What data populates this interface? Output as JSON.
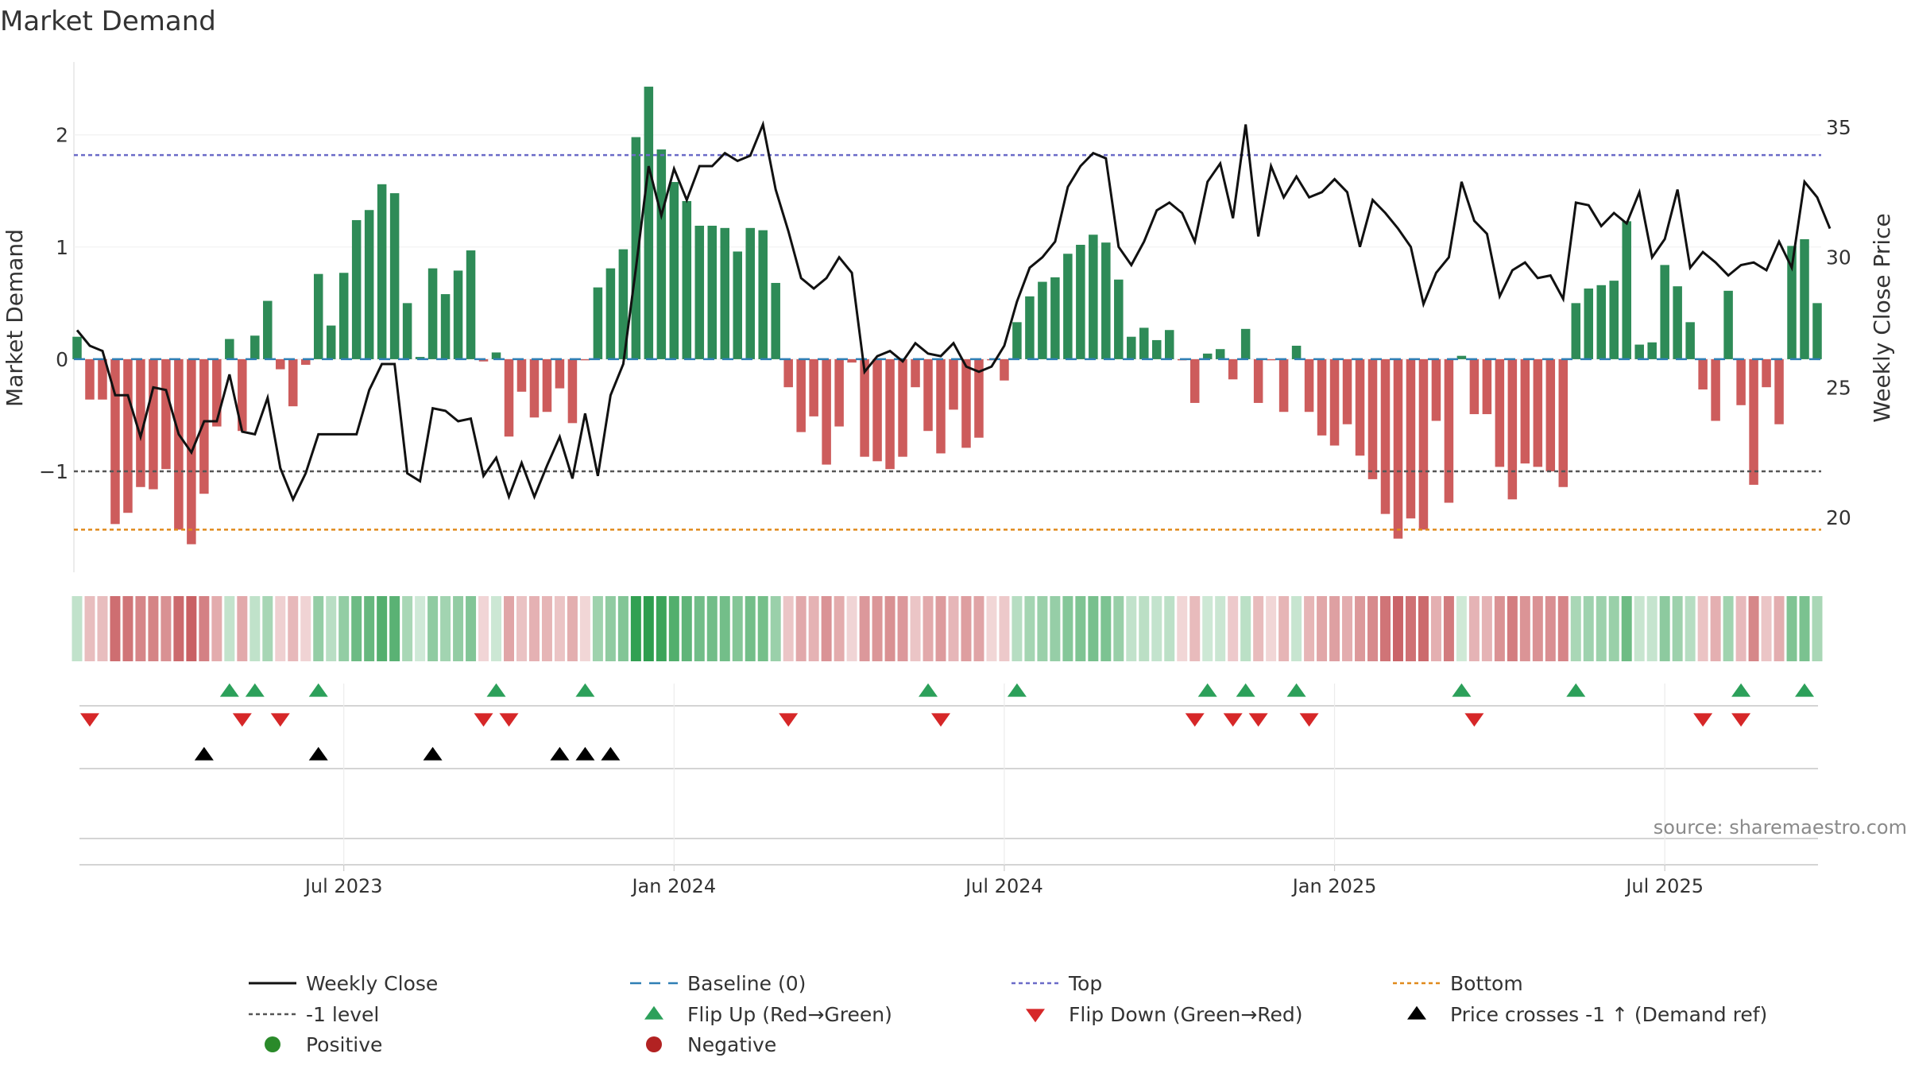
{
  "chart_data": {
    "type": "bar",
    "title": "Market Demand",
    "ylabel_left": "Market Demand",
    "ylabel_right": "Weekly Close Price",
    "ylim_left": [
      -1.9,
      2.65
    ],
    "ylim_right": [
      17.9,
      37.5
    ],
    "yticks_left": [
      {
        "v": 2,
        "l": "2"
      },
      {
        "v": 1,
        "l": "1"
      },
      {
        "v": 0,
        "l": "0"
      },
      {
        "v": -1,
        "l": "−1"
      }
    ],
    "yticks_right": [
      {
        "v": 35,
        "l": "35"
      },
      {
        "v": 30,
        "l": "30"
      },
      {
        "v": 25,
        "l": "25"
      },
      {
        "v": 20,
        "l": "20"
      }
    ],
    "xticks": [
      {
        "i": 21,
        "l": "Jul 2023"
      },
      {
        "i": 47,
        "l": "Jan 2024"
      },
      {
        "i": 73,
        "l": "Jul 2024"
      },
      {
        "i": 99,
        "l": "Jan 2025"
      },
      {
        "i": 125,
        "l": "Jul 2025"
      }
    ],
    "reference_lines": {
      "top": 1.82,
      "bottom": -1.52,
      "minus_one": -1.0,
      "baseline": 0
    },
    "demand": [
      0.2,
      -0.36,
      -0.36,
      -1.47,
      -1.37,
      -1.14,
      -1.16,
      -0.98,
      -1.52,
      -1.65,
      -1.2,
      -0.6,
      0.18,
      -0.64,
      0.21,
      0.52,
      -0.09,
      -0.42,
      -0.05,
      0.76,
      0.3,
      0.77,
      1.24,
      1.33,
      1.56,
      1.48,
      0.5,
      0.02,
      0.81,
      0.58,
      0.79,
      0.97,
      -0.02,
      0.06,
      -0.69,
      -0.29,
      -0.52,
      -0.47,
      -0.26,
      -0.57,
      -0.01,
      0.64,
      0.81,
      0.98,
      1.98,
      2.43,
      1.87,
      1.58,
      1.41,
      1.19,
      1.19,
      1.17,
      0.96,
      1.17,
      1.15,
      0.68,
      -0.25,
      -0.65,
      -0.51,
      -0.94,
      -0.6,
      -0.03,
      -0.87,
      -0.91,
      -0.98,
      -0.87,
      -0.25,
      -0.64,
      -0.84,
      -0.45,
      -0.79,
      -0.7,
      -0.01,
      -0.19,
      0.33,
      0.56,
      0.69,
      0.73,
      0.94,
      1.02,
      1.11,
      1.04,
      0.71,
      0.2,
      0.28,
      0.17,
      0.26,
      -0.01,
      -0.39,
      0.05,
      0.09,
      -0.18,
      0.27,
      -0.39,
      -0.01,
      -0.47,
      0.12,
      -0.47,
      -0.68,
      -0.77,
      -0.58,
      -0.86,
      -1.07,
      -1.38,
      -1.6,
      -1.42,
      -1.52,
      -0.55,
      -1.28,
      0.03,
      -0.49,
      -0.49,
      -0.96,
      -1.25,
      -0.93,
      -0.96,
      -1.0,
      -1.14,
      0.5,
      0.63,
      0.66,
      0.7,
      1.23,
      0.13,
      0.15,
      0.84,
      0.65,
      0.33,
      -0.27,
      -0.55,
      0.61,
      -0.41,
      -1.12,
      -0.25,
      -0.58,
      1.01,
      1.07,
      0.5
    ],
    "close": [
      27.2,
      26.6,
      26.4,
      24.7,
      24.7,
      23.1,
      25.0,
      24.9,
      23.2,
      22.5,
      23.7,
      23.7,
      25.5,
      23.3,
      23.2,
      24.6,
      21.9,
      20.7,
      21.7,
      23.2,
      23.2,
      23.2,
      23.2,
      24.9,
      25.9,
      25.9,
      21.7,
      21.4,
      24.2,
      24.1,
      23.7,
      23.8,
      21.6,
      22.3,
      20.8,
      22.1,
      20.8,
      22.0,
      23.1,
      21.5,
      24.0,
      21.6,
      24.7,
      25.9,
      29.6,
      33.5,
      31.6,
      33.4,
      32.2,
      33.5,
      33.5,
      34.0,
      33.7,
      33.9,
      35.1,
      32.6,
      31.0,
      29.2,
      28.8,
      29.2,
      30.0,
      29.4,
      25.6,
      26.2,
      26.4,
      26.0,
      26.7,
      26.3,
      26.2,
      26.7,
      25.8,
      25.6,
      25.8,
      26.6,
      28.3,
      29.6,
      30.0,
      30.6,
      32.7,
      33.5,
      34.0,
      33.8,
      30.4,
      29.7,
      30.6,
      31.8,
      32.1,
      31.7,
      30.6,
      32.9,
      33.6,
      31.5,
      35.1,
      30.8,
      33.5,
      32.3,
      33.1,
      32.3,
      32.5,
      33.0,
      32.5,
      30.4,
      32.2,
      31.7,
      31.1,
      30.4,
      28.2,
      29.4,
      30.0,
      32.9,
      31.4,
      30.9,
      28.5,
      29.5,
      29.8,
      29.2,
      29.3,
      28.4,
      32.1,
      32.0,
      31.2,
      31.7,
      31.3,
      32.5,
      30.0,
      30.7,
      32.6,
      29.6,
      30.2,
      29.8,
      29.3,
      29.7,
      29.8,
      29.5,
      30.6,
      29.6,
      32.9,
      32.3,
      31.1
    ],
    "heat_values": [
      0.2,
      -0.36,
      -0.36,
      -1.47,
      -1.37,
      -1.14,
      -1.16,
      -0.98,
      -1.52,
      -1.65,
      -1.2,
      -0.6,
      0.18,
      -0.64,
      0.21,
      0.52,
      -0.09,
      -0.42,
      -0.05,
      0.76,
      0.3,
      0.77,
      1.24,
      1.33,
      1.56,
      1.48,
      0.5,
      0.02,
      0.81,
      0.58,
      0.79,
      0.97,
      -0.02,
      0.06,
      -0.69,
      -0.29,
      -0.52,
      -0.47,
      -0.26,
      -0.57,
      -0.01,
      0.64,
      0.81,
      0.98,
      1.98,
      2.43,
      1.87,
      1.58,
      1.41,
      1.19,
      1.19,
      1.17,
      0.96,
      1.17,
      1.15,
      0.68,
      -0.25,
      -0.65,
      -0.51,
      -0.94,
      -0.6,
      -0.03,
      -0.87,
      -0.91,
      -0.98,
      -0.87,
      -0.25,
      -0.64,
      -0.84,
      -0.45,
      -0.79,
      -0.7,
      -0.01,
      -0.19,
      0.33,
      0.56,
      0.69,
      0.73,
      0.94,
      1.02,
      1.11,
      1.04,
      0.71,
      0.2,
      0.28,
      0.17,
      0.26,
      -0.01,
      -0.39,
      0.05,
      0.09,
      -0.18,
      0.27,
      -0.39,
      -0.01,
      -0.47,
      0.12,
      -0.47,
      -0.68,
      -0.77,
      -0.58,
      -0.86,
      -1.07,
      -1.38,
      -1.6,
      -1.42,
      -1.52,
      -0.55,
      -1.28,
      0.03,
      -0.49,
      -0.49,
      -0.96,
      -1.25,
      -0.93,
      -0.96,
      -1.0,
      -1.14,
      0.5,
      0.63,
      0.66,
      0.7,
      1.23,
      0.13,
      0.15,
      0.84,
      0.65,
      0.33,
      -0.27,
      -0.55,
      0.61,
      -0.41,
      -1.12,
      -0.25,
      -0.58,
      1.01,
      1.07,
      0.5
    ],
    "flip_up": [
      12,
      14,
      19,
      33,
      40,
      67,
      74,
      89,
      92,
      96,
      109,
      118,
      131,
      136
    ],
    "flip_down": [
      1,
      13,
      16,
      32,
      34,
      56,
      68,
      88,
      91,
      93,
      97,
      110,
      128,
      131
    ],
    "price_cross_up": [
      10,
      19,
      28,
      38,
      40,
      42
    ],
    "source": "source: sharemaestro.com",
    "legend": [
      {
        "label": "Weekly Close",
        "style": "line",
        "color": "#111111"
      },
      {
        "label": "Baseline (0)",
        "style": "dash",
        "color": "#2f7fb5"
      },
      {
        "label": "Top",
        "style": "dot",
        "color": "#6b6bc8"
      },
      {
        "label": "Bottom",
        "style": "dot",
        "color": "#e08a1c"
      },
      {
        "label": "-1 level",
        "style": "dot",
        "color": "#555555"
      },
      {
        "label": "Flip Up (Red→Green)",
        "style": "tri-up",
        "color": "#2ca05a"
      },
      {
        "label": "Flip Down (Green→Red)",
        "style": "tri-down",
        "color": "#d62728"
      },
      {
        "label": "Price crosses -1 ↑ (Demand ref)",
        "style": "tri-up",
        "color": "#000000"
      },
      {
        "label": "Positive",
        "style": "circle",
        "color": "#2a8a2a"
      },
      {
        "label": "Negative",
        "style": "circle",
        "color": "#b22222"
      }
    ],
    "colors": {
      "positive_bar": "#2e8b57",
      "negative_bar": "#cd5c5c",
      "line": "#111111",
      "top_line": "#6b6bc8",
      "bottom_line": "#e08a1c",
      "minus_one_line": "#555555",
      "baseline": "#2f7fb5"
    }
  }
}
